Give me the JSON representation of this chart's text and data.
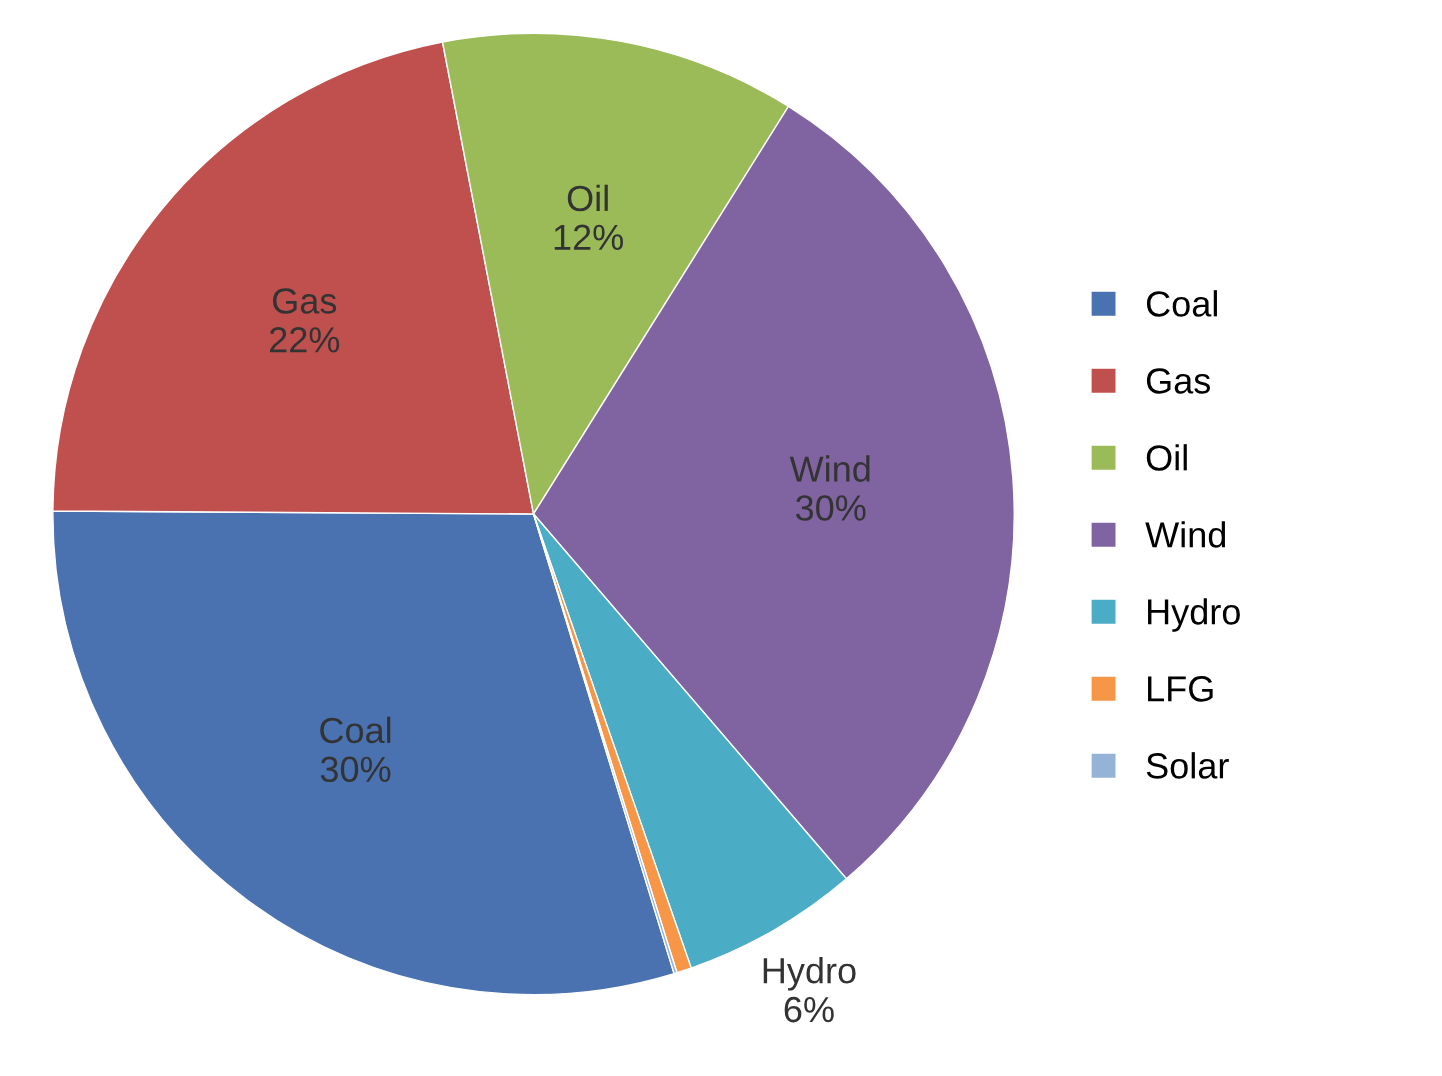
{
  "chart_data": {
    "type": "pie",
    "categories": [
      "Coal",
      "Gas",
      "Oil",
      "Wind",
      "Hydro",
      "LFG",
      "Solar"
    ],
    "values": [
      30,
      22,
      12,
      30,
      6,
      0.5,
      0.1
    ],
    "value_labels": [
      "30%",
      "22%",
      "12%",
      "30%",
      "6%",
      null,
      null
    ],
    "colors": [
      "#4a72b0",
      "#c0504d",
      "#9bbb59",
      "#8064a2",
      "#4bacc6",
      "#f79646",
      "#95b3d7"
    ],
    "legend": "right"
  }
}
